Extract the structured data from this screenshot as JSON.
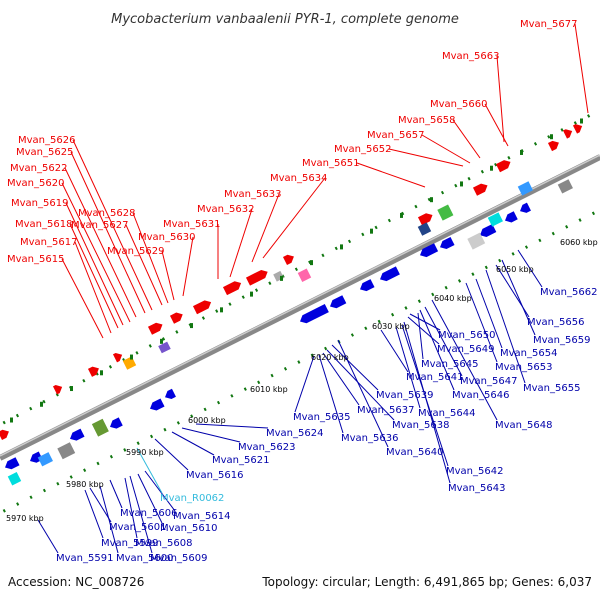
{
  "title": "Mycobacterium vanbaalenii PYR-1, complete genome",
  "footer": {
    "accession": "Accession: NC_008726",
    "summary": "Topology: circular; Length: 6,491,865 bp; Genes: 6,037"
  },
  "colors": {
    "forward_label": "#ee0000",
    "reverse_label": "#0000aa",
    "rna_label": "#33bbdd",
    "forward_gene": "#ee0000",
    "reverse_gene": "#0000dd",
    "backbone": "#888888",
    "tick": "#117711"
  },
  "kbp_labels": [
    "5970 kbp",
    "5980 kbp",
    "5990 kbp",
    "6000 kbp",
    "6010 kbp",
    "6020 kbp",
    "6030 kbp",
    "6040 kbp",
    "6050 kbp",
    "6060 kbp"
  ],
  "forward_labels": [
    "Mvan_5615",
    "Mvan_5617",
    "Mvan_5618",
    "Mvan_5619",
    "Mvan_5620",
    "Mvan_5622",
    "Mvan_5625",
    "Mvan_5626",
    "Mvan_5627",
    "Mvan_5628",
    "Mvan_5629",
    "Mvan_5630",
    "Mvan_5631",
    "Mvan_5632",
    "Mvan_5633",
    "Mvan_5634",
    "Mvan_5651",
    "Mvan_5652",
    "Mvan_5657",
    "Mvan_5658",
    "Mvan_5660",
    "Mvan_5663",
    "Mvan_5677"
  ],
  "reverse_labels": [
    "Mvan_5591",
    "Mvan_5599",
    "Mvan_5600",
    "Mvan_5601",
    "Mvan_5606",
    "Mvan_5608",
    "Mvan_5609",
    "Mvan_5610",
    "Mvan_5614",
    "Mvan_R0062",
    "Mvan_5616",
    "Mvan_5621",
    "Mvan_5623",
    "Mvan_5624",
    "Mvan_5635",
    "Mvan_5636",
    "Mvan_5637",
    "Mvan_5638",
    "Mvan_5639",
    "Mvan_5640",
    "Mvan_5641",
    "Mvan_5642",
    "Mvan_5643",
    "Mvan_5644",
    "Mvan_5645",
    "Mvan_5646",
    "Mvan_5647",
    "Mvan_5648",
    "Mvan_5649",
    "Mvan_5650",
    "Mvan_5653",
    "Mvan_5654",
    "Mvan_5655",
    "Mvan_5656",
    "Mvan_5659",
    "Mvan_5662"
  ]
}
